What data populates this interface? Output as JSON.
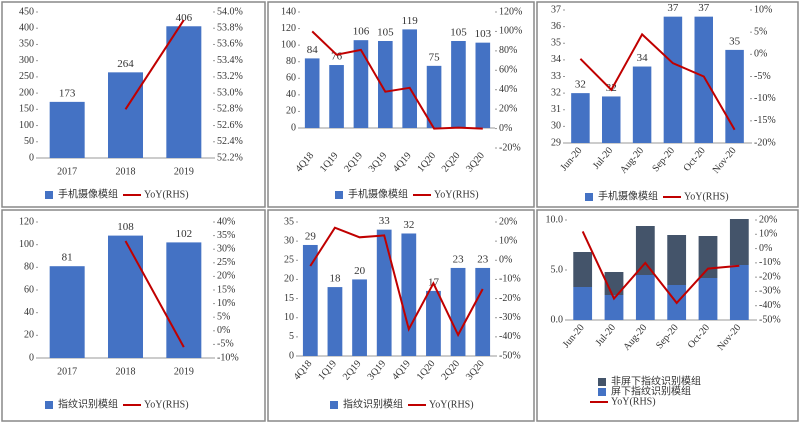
{
  "chart_data": [
    {
      "type": "bar",
      "categories": [
        "2017",
        "2018",
        "2019"
      ],
      "series": [
        {
          "name": "手机摄像模组",
          "type": "bar",
          "color": "#4472c4",
          "values": [
            173,
            264,
            406
          ]
        },
        {
          "name": "YoY(RHS)",
          "type": "line",
          "axis": "y2",
          "color": "#c00000",
          "values": [
            null,
            52.8,
            53.9
          ]
        }
      ],
      "ylim": [
        0,
        450
      ],
      "yticks": [
        0,
        50,
        100,
        150,
        200,
        250,
        300,
        350,
        400,
        450
      ],
      "y2lim": [
        52.2,
        54.0
      ],
      "y2ticks": [
        {
          "value": 52.2,
          "label": "52.2%"
        },
        {
          "value": 52.4,
          "label": "52.4%"
        },
        {
          "value": 52.6,
          "label": "52.6%"
        },
        {
          "value": 52.8,
          "label": "52.8%"
        },
        {
          "value": 53.0,
          "label": "53.0%"
        },
        {
          "value": 53.2,
          "label": "53.2%"
        },
        {
          "value": 53.4,
          "label": "53.4%"
        },
        {
          "value": 53.6,
          "label": "53.6%"
        },
        {
          "value": 53.8,
          "label": "53.8%"
        },
        {
          "value": 54.0,
          "label": "54.0%"
        }
      ],
      "data_labels": true
    },
    {
      "type": "bar",
      "categories": [
        "4Q18",
        "1Q19",
        "2Q19",
        "3Q19",
        "4Q19",
        "1Q20",
        "2Q20",
        "3Q20"
      ],
      "series": [
        {
          "name": "手机摄像模组",
          "type": "bar",
          "color": "#4472c4",
          "values": [
            84,
            76,
            106,
            105,
            119,
            75,
            105,
            103
          ]
        },
        {
          "name": "YoY(RHS)",
          "type": "line",
          "axis": "y2",
          "color": "#c00000",
          "values": [
            100,
            76,
            81,
            38,
            42,
            0,
            1,
            0
          ]
        }
      ],
      "ylim": [
        0,
        140
      ],
      "yticks": [
        0,
        20,
        40,
        60,
        80,
        100,
        120,
        140
      ],
      "y2lim": [
        -20,
        120
      ],
      "y2ticks": [
        {
          "value": -20,
          "label": "-20%"
        },
        {
          "value": 0,
          "label": "0%"
        },
        {
          "value": 20,
          "label": "20%"
        },
        {
          "value": 40,
          "label": "40%"
        },
        {
          "value": 60,
          "label": "60%"
        },
        {
          "value": 80,
          "label": "80%"
        },
        {
          "value": 100,
          "label": "100%"
        },
        {
          "value": 120,
          "label": "120%"
        }
      ],
      "data_labels": true
    },
    {
      "type": "bar",
      "categories": [
        "Jun-20",
        "Jul-20",
        "Aug-20",
        "Sep-20",
        "Oct-20",
        "Nov-20"
      ],
      "series": [
        {
          "name": "手机摄像模组",
          "type": "bar",
          "color": "#4472c4",
          "values": [
            32.0,
            31.8,
            33.6,
            36.6,
            36.6,
            34.6
          ],
          "value_labels": [
            "32",
            "32",
            "34",
            "37",
            "37",
            "35"
          ]
        },
        {
          "name": "YoY(RHS)",
          "type": "line",
          "axis": "y2",
          "color": "#c00000",
          "values": [
            -1,
            -8,
            4.5,
            -2,
            -5,
            -17
          ]
        }
      ],
      "ylim": [
        29,
        37
      ],
      "yticks": [
        29,
        30,
        31,
        32,
        33,
        34,
        35,
        36,
        37
      ],
      "y2lim": [
        -20,
        10
      ],
      "y2ticks": [
        {
          "value": -20,
          "label": "-20%"
        },
        {
          "value": -15,
          "label": "-15%"
        },
        {
          "value": -10,
          "label": "-10%"
        },
        {
          "value": -5,
          "label": "-5%"
        },
        {
          "value": 0,
          "label": "0%"
        },
        {
          "value": 5,
          "label": "5%"
        },
        {
          "value": 10,
          "label": "10%"
        }
      ],
      "data_labels": true
    },
    {
      "type": "bar",
      "categories": [
        "2017",
        "2018",
        "2019"
      ],
      "series": [
        {
          "name": "指纹识别模组",
          "type": "bar",
          "color": "#4472c4",
          "values": [
            81,
            108,
            102
          ]
        },
        {
          "name": "YoY(RHS)",
          "type": "line",
          "axis": "y2",
          "color": "#c00000",
          "values": [
            null,
            33,
            -6
          ]
        }
      ],
      "ylim": [
        0,
        120
      ],
      "yticks": [
        0,
        20,
        40,
        60,
        80,
        100,
        120
      ],
      "y2lim": [
        -10,
        40
      ],
      "y2ticks": [
        {
          "value": -10,
          "label": "-10%"
        },
        {
          "value": -5,
          "label": "-5%"
        },
        {
          "value": 0,
          "label": "0%"
        },
        {
          "value": 5,
          "label": "5%"
        },
        {
          "value": 10,
          "label": "10%"
        },
        {
          "value": 15,
          "label": "15%"
        },
        {
          "value": 20,
          "label": "20%"
        },
        {
          "value": 25,
          "label": "25%"
        },
        {
          "value": 30,
          "label": "30%"
        },
        {
          "value": 35,
          "label": "35%"
        },
        {
          "value": 40,
          "label": "40%"
        }
      ],
      "data_labels": true
    },
    {
      "type": "bar",
      "categories": [
        "4Q18",
        "1Q19",
        "2Q19",
        "3Q19",
        "4Q19",
        "1Q20",
        "2Q20",
        "3Q20"
      ],
      "series": [
        {
          "name": "指纹识别模组",
          "type": "bar",
          "color": "#4472c4",
          "values": [
            29,
            18,
            20,
            33,
            32,
            17,
            23,
            23
          ]
        },
        {
          "name": "YoY(RHS)",
          "type": "line",
          "axis": "y2",
          "color": "#c00000",
          "values": [
            -3,
            17,
            12,
            13,
            -36,
            -12,
            -39,
            -15
          ]
        }
      ],
      "ylim": [
        0,
        35
      ],
      "yticks": [
        0,
        5,
        10,
        15,
        20,
        25,
        30,
        35
      ],
      "y2lim": [
        -50,
        20
      ],
      "y2ticks": [
        {
          "value": -50,
          "label": "-50%"
        },
        {
          "value": -40,
          "label": "-40%"
        },
        {
          "value": -30,
          "label": "-30%"
        },
        {
          "value": -20,
          "label": "-20%"
        },
        {
          "value": -10,
          "label": "-10%"
        },
        {
          "value": 0,
          "label": "0%"
        },
        {
          "value": 10,
          "label": "10%"
        },
        {
          "value": 20,
          "label": "20%"
        }
      ],
      "data_labels": true
    },
    {
      "type": "bar",
      "stacked": true,
      "categories": [
        "Jun-20",
        "Jul-20",
        "Aug-20",
        "Sep-20",
        "Oct-20",
        "Nov-20"
      ],
      "series": [
        {
          "name": "屏下指纹识别模组",
          "type": "bar",
          "color": "#4472c4",
          "values": [
            3.3,
            2.5,
            4.5,
            3.5,
            4.2,
            5.5
          ]
        },
        {
          "name": "非屏下指纹识别模组",
          "type": "bar",
          "color": "#44546a",
          "values": [
            3.5,
            2.3,
            4.9,
            5.0,
            4.2,
            4.6
          ]
        },
        {
          "name": "YoY(RHS)",
          "type": "line",
          "axis": "y2",
          "color": "#c00000",
          "values": [
            12,
            -35,
            -10,
            -38,
            -14,
            -12
          ]
        }
      ],
      "ylim": [
        0,
        10
      ],
      "yticks": [
        {
          "value": 0,
          "label": "0.0"
        },
        {
          "value": 5,
          "label": "5.0"
        },
        {
          "value": 10,
          "label": "10.0"
        }
      ],
      "y2lim": [
        -50,
        20
      ],
      "y2ticks": [
        {
          "value": -50,
          "label": "-50%"
        },
        {
          "value": -40,
          "label": "-40%"
        },
        {
          "value": -30,
          "label": "-30%"
        },
        {
          "value": -20,
          "label": "-20%"
        },
        {
          "value": -10,
          "label": "-10%"
        },
        {
          "value": 0,
          "label": "0%"
        },
        {
          "value": 10,
          "label": "10%"
        },
        {
          "value": 20,
          "label": "20%"
        }
      ],
      "data_labels": false
    }
  ]
}
